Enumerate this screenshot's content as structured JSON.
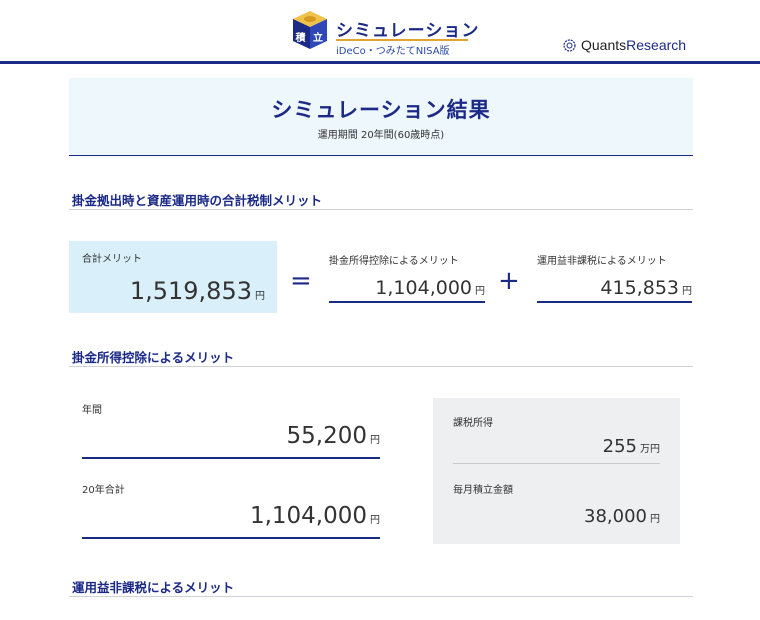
{
  "header": {
    "logo_kanji_left": "積",
    "logo_kanji_right": "立",
    "title": "シミュレーション",
    "subtitle": "iDeCo・つみたてNISA版",
    "brand_first": "Quants ",
    "brand_second": "Research",
    "brand_icon": "gear-globe-icon",
    "colors": {
      "primary": "#1b2a86",
      "accent": "#e0a431"
    }
  },
  "result": {
    "title": "シミュレーション結果",
    "subtitle": "運用期間 20年間(60歳時点)"
  },
  "summary": {
    "heading": "掛金拠出時と資産運用時の合計税制メリット",
    "total_label": "合計メリット",
    "total_value": "1,519,853",
    "deduction_label": "掛金所得控除によるメリット",
    "deduction_value": "1,104,000",
    "taxfree_label": "運用益非課税によるメリット",
    "taxfree_value": "415,853",
    "unit": "円",
    "equals": "=",
    "plus": "+"
  },
  "deduction": {
    "heading": "掛金所得控除によるメリット",
    "annual_label": "年間",
    "annual_value": "55,200",
    "total20_label": "20年合計",
    "total20_value": "1,104,000",
    "unit": "円",
    "taxable_income_label": "課税所得",
    "taxable_income_value": "255",
    "taxable_income_unit": "万円",
    "monthly_label": "毎月積立金額",
    "monthly_value": "38,000",
    "monthly_unit": "円"
  },
  "taxfree": {
    "heading": "運用益非課税によるメリット"
  }
}
